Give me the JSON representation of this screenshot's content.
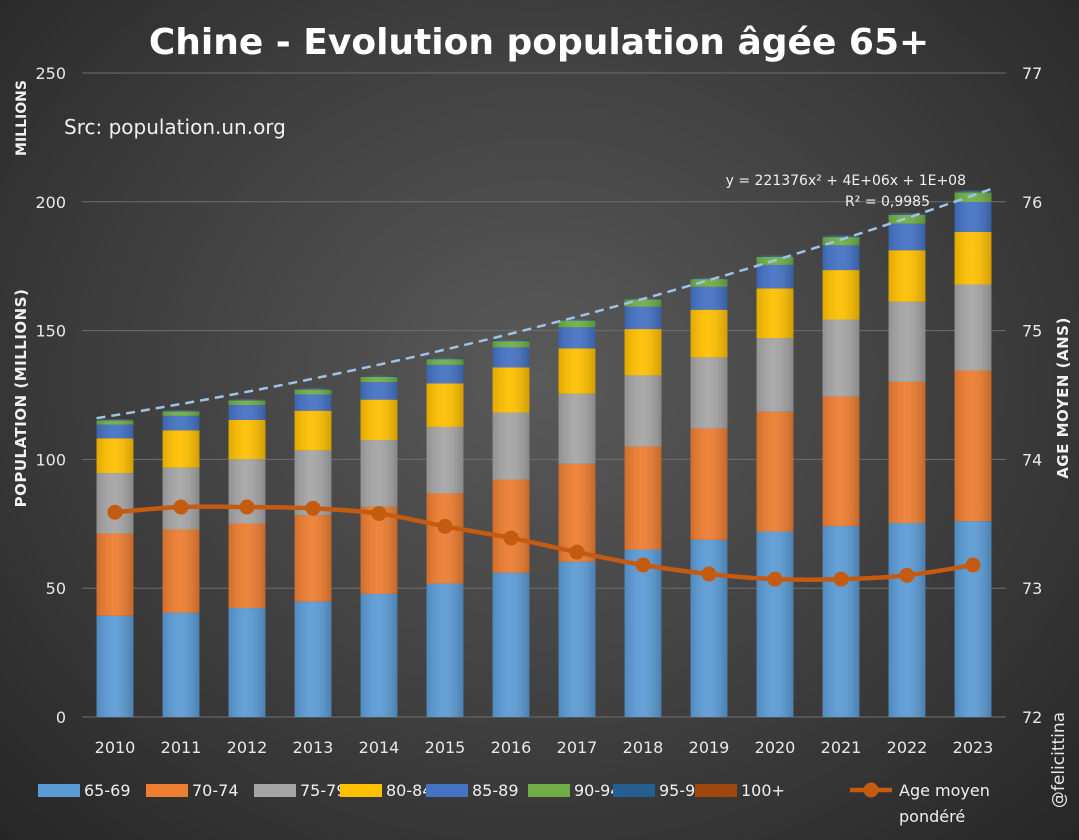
{
  "header": {
    "title": "Chine - Evolution population âgée 65+",
    "source": "Src: population.un.org",
    "credit": "@felicittina"
  },
  "colors": {
    "65-69": "#5b9bd5",
    "70-74": "#ed7d31",
    "75-79": "#a5a5a5",
    "80-84": "#ffc000",
    "85-89": "#4472c4",
    "90-94": "#70ad47",
    "95-99": "#255e91",
    "100+": "#9e480e",
    "line": "#c55a11",
    "trend": "#9dc3e6"
  },
  "chart_data": {
    "type": "bar",
    "stacked": true,
    "categories": [
      "2010",
      "2011",
      "2012",
      "2013",
      "2014",
      "2015",
      "2016",
      "2017",
      "2018",
      "2019",
      "2020",
      "2021",
      "2022",
      "2023"
    ],
    "y_label": "POPULATION (MILLIONS)",
    "y_units": "MILLIONS",
    "y_range": [
      0,
      250
    ],
    "y_ticks": [
      "0",
      "50",
      "100",
      "150",
      "200",
      "250"
    ],
    "y2_label": "AGE MOYEN (ANS)",
    "y2_range": [
      72,
      77
    ],
    "y2_ticks": [
      "72",
      "73",
      "74",
      "75",
      "76",
      "77"
    ],
    "series": [
      {
        "name": "65-69",
        "values": [
          39.3,
          40.5,
          42.3,
          44.8,
          47.8,
          51.8,
          56,
          60.3,
          65,
          68.8,
          72,
          74.1,
          75.3,
          76
        ]
      },
      {
        "name": "70-74",
        "values": [
          31.9,
          32.3,
          32.8,
          33.5,
          33.8,
          35,
          36.2,
          38,
          40,
          43.2,
          46.5,
          50.3,
          54.8,
          58.5
        ]
      },
      {
        "name": "75-79",
        "values": [
          23.5,
          24,
          25,
          25.2,
          25.9,
          25.8,
          26,
          27.2,
          27.6,
          27.6,
          28.6,
          29.9,
          31.1,
          33.4
        ]
      },
      {
        "name": "80-84",
        "values": [
          13.5,
          14.5,
          15.2,
          15.4,
          15.7,
          16.9,
          17.5,
          17.6,
          18,
          18.5,
          19.3,
          19.2,
          20,
          20.4
        ]
      },
      {
        "name": "85-89",
        "values": [
          5.3,
          5.6,
          5.8,
          6.3,
          6.8,
          7.2,
          7.8,
          8.2,
          8.7,
          8.9,
          9.1,
          9.6,
          10.3,
          11.6
        ]
      },
      {
        "name": "90-94",
        "values": [
          1.6,
          1.7,
          1.8,
          1.9,
          2,
          2.2,
          2.4,
          2.6,
          2.8,
          3,
          3.1,
          3.2,
          3.4,
          3.7
        ]
      },
      {
        "name": "95-99",
        "values": [
          0.4,
          0.4,
          0.5,
          0.5,
          0.5,
          0.5,
          0.5,
          0.5,
          0.5,
          0.5,
          0.5,
          0.6,
          0.6,
          0.7
        ]
      },
      {
        "name": "100+",
        "values": [
          0.1,
          0.1,
          0.1,
          0.1,
          0.1,
          0.1,
          0.1,
          0.1,
          0.1,
          0.1,
          0.1,
          0.1,
          0.1,
          0.1
        ]
      }
    ],
    "line_series": {
      "name": "Age moyen pondéré",
      "axis": "secondary",
      "values": [
        73.59,
        73.63,
        73.63,
        73.62,
        73.58,
        73.48,
        73.39,
        73.28,
        73.18,
        73.11,
        73.07,
        73.07,
        73.1,
        73.18
      ]
    },
    "trendline": {
      "equation": "y = 221376x² + 4E+06x + 1E+08",
      "r2": "R² = 0,9985",
      "start_value": 116,
      "end_value": 205
    },
    "legend_position": "bottom",
    "grid": true
  }
}
